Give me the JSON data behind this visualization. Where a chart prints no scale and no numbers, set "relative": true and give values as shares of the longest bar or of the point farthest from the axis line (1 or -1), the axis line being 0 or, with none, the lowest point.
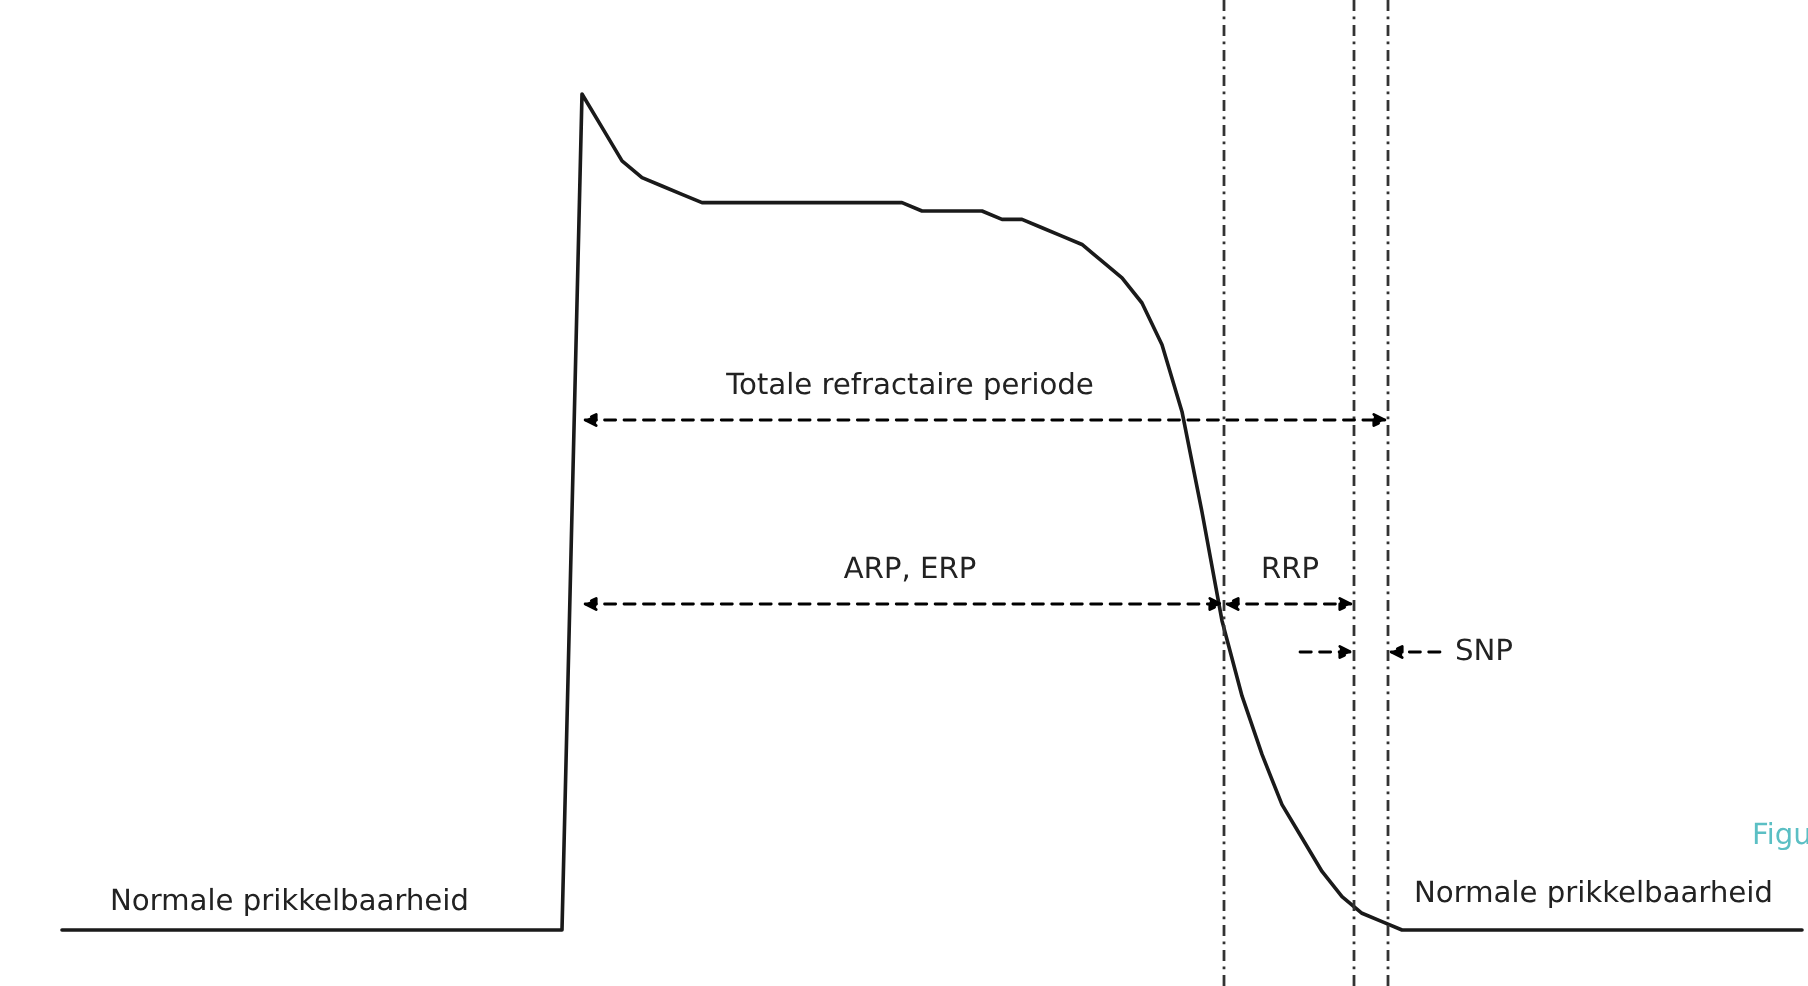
{
  "chart_data": {
    "type": "line",
    "relative": true,
    "categories": [
      null,
      null,
      null,
      null,
      null,
      null,
      null,
      null,
      null,
      null,
      null,
      null,
      null,
      null,
      null,
      null,
      null,
      null,
      null,
      null,
      null,
      null,
      null,
      null,
      null,
      null,
      null,
      null,
      null,
      null,
      null,
      null,
      null,
      null,
      null,
      null,
      null,
      null,
      null,
      null,
      null,
      null,
      null,
      null,
      null,
      null,
      null,
      null,
      null,
      null,
      null,
      null,
      null,
      null,
      null,
      null,
      null,
      null,
      null,
      null,
      null,
      null,
      null,
      null,
      null,
      null,
      null,
      null,
      null,
      null,
      null,
      null,
      null,
      null,
      null,
      null,
      null,
      null,
      null,
      null,
      null,
      null,
      null,
      null,
      null,
      null,
      null,
      null
    ],
    "series": [
      {
        "color": "#1a1a1a",
        "values": [
          0,
          0,
          0,
          0,
          0,
          0,
          0,
          0,
          0,
          0,
          0,
          0,
          0,
          0,
          0,
          0,
          0,
          0,
          0,
          0,
          0,
          0,
          0,
          0,
          0,
          0,
          1.0,
          0.96,
          0.92,
          0.9,
          0.89,
          0.88,
          0.87,
          0.87,
          0.87,
          0.87,
          0.87,
          0.87,
          0.87,
          0.87,
          0.87,
          0.87,
          0.87,
          0.86,
          0.86,
          0.86,
          0.86,
          0.85,
          0.85,
          0.84,
          0.83,
          0.82,
          0.8,
          0.78,
          0.75,
          0.7,
          0.62,
          0.5,
          0.37,
          0.28,
          0.21,
          0.15,
          0.11,
          0.07,
          0.04,
          0.02,
          0.01,
          0,
          0,
          0,
          0,
          0,
          0,
          0,
          0,
          0,
          0,
          0,
          0,
          0,
          0,
          0,
          0,
          0,
          0,
          0,
          0,
          0
        ]
      }
    ],
    "annotations": [
      "Totale refractaire periode",
      "ARP, ERP",
      "RRP",
      "SNP",
      "Normale prikkelbaarheid",
      "Normale prikkelbaarheid",
      "Figu"
    ],
    "legend": false,
    "marker": "none",
    "line_style": "solid"
  }
}
